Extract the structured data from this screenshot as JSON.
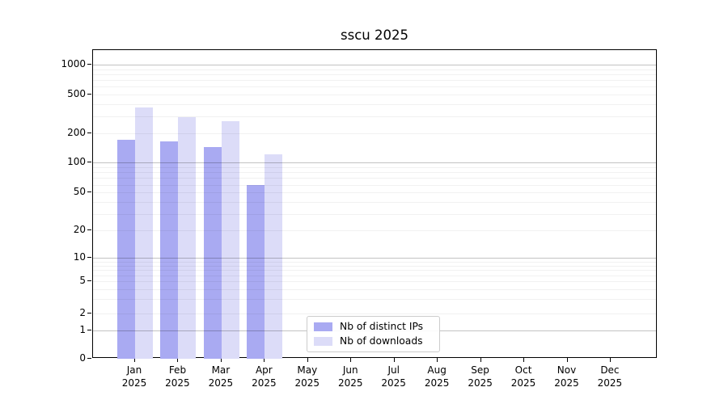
{
  "title": "sscu 2025",
  "chart_data": {
    "type": "bar",
    "title": "sscu 2025",
    "categories": [
      {
        "month": "Jan",
        "year": "2025"
      },
      {
        "month": "Feb",
        "year": "2025"
      },
      {
        "month": "Mar",
        "year": "2025"
      },
      {
        "month": "Apr",
        "year": "2025"
      },
      {
        "month": "May",
        "year": "2025"
      },
      {
        "month": "Jun",
        "year": "2025"
      },
      {
        "month": "Jul",
        "year": "2025"
      },
      {
        "month": "Aug",
        "year": "2025"
      },
      {
        "month": "Sep",
        "year": "2025"
      },
      {
        "month": "Oct",
        "year": "2025"
      },
      {
        "month": "Nov",
        "year": "2025"
      },
      {
        "month": "Dec",
        "year": "2025"
      }
    ],
    "series": [
      {
        "name": "Nb of distinct IPs",
        "color": "#a9aaf2",
        "values": [
          170,
          165,
          144,
          60,
          null,
          null,
          null,
          null,
          null,
          null,
          null,
          null
        ]
      },
      {
        "name": "Nb of downloads",
        "color": "#dcdcf8",
        "values": [
          370,
          292,
          266,
          121,
          null,
          null,
          null,
          null,
          null,
          null,
          null,
          null
        ]
      }
    ],
    "yscale": "log",
    "yticks": [
      0,
      1,
      2,
      5,
      10,
      20,
      50,
      100,
      200,
      500,
      1000
    ],
    "ylim": [
      0,
      1400
    ],
    "grid": "horizontal major+minor",
    "legend_position": "lower center inside plot",
    "xlabel": "",
    "ylabel": ""
  },
  "colors": {
    "bar_distinct_ips": "#a9aaf2",
    "bar_downloads": "#dcdcf8",
    "major_grid": "#bfbfbf",
    "minor_grid": "#f0f0f0",
    "axis": "#000000",
    "legend_border": "#cccccc"
  }
}
